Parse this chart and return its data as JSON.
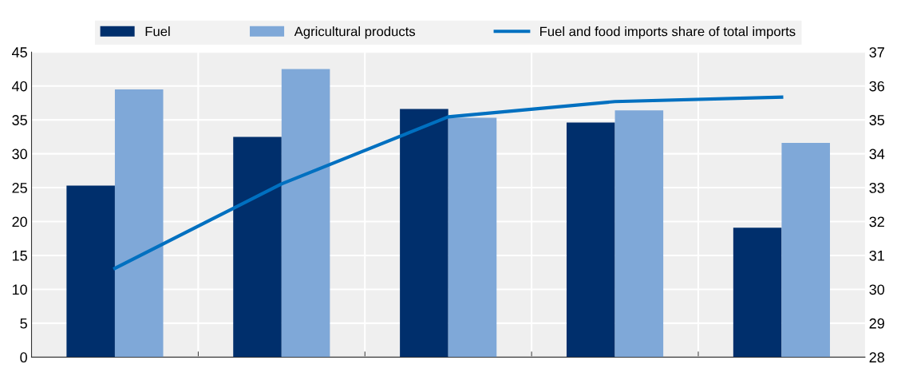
{
  "chart_data": {
    "type": "bar",
    "categories": [
      null,
      null,
      null,
      null,
      null
    ],
    "series": [
      {
        "name": "Fuel",
        "color": "#002f6c",
        "values": [
          25.3,
          32.5,
          36.6,
          34.6,
          19.1
        ]
      },
      {
        "name": "Agricultural products",
        "color": "#7fa8d8",
        "values": [
          39.5,
          42.5,
          35.3,
          36.4,
          31.6
        ]
      },
      {
        "name": "Fuel and food imports share of total imports",
        "type": "line",
        "axis": "y2",
        "color": "#0070c0",
        "values": [
          30.62,
          33.11,
          35.09,
          35.54,
          35.67
        ]
      }
    ],
    "ylim": [
      0,
      45
    ],
    "yticks": [
      0,
      5,
      10,
      15,
      20,
      25,
      30,
      35,
      40,
      45
    ],
    "y2lim": [
      28,
      37
    ],
    "y2ticks": [
      28,
      29,
      30,
      31,
      32,
      33,
      34,
      35,
      36,
      37
    ],
    "grid": true,
    "legend": "top",
    "marker": "none",
    "line_style": "solid"
  }
}
